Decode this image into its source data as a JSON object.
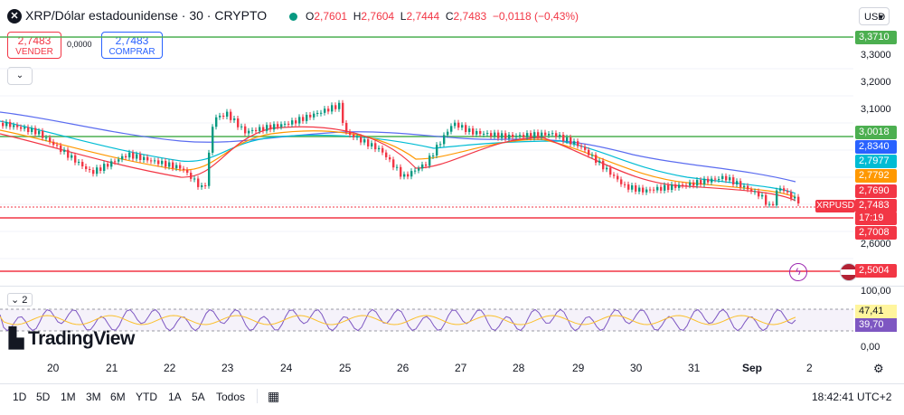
{
  "header": {
    "logo_glyph": "✕",
    "symbol_title": "XRP/Dólar estadounidense · 30 · CRYPTO",
    "ohlc": {
      "o_label": "O",
      "o_value": "2,7601",
      "h_label": "H",
      "h_value": "2,7604",
      "l_label": "L",
      "l_value": "2,7444",
      "c_label": "C",
      "c_value": "2,7483",
      "change": "−0,0118 (−0,43%)"
    },
    "currency": "USD"
  },
  "trade": {
    "sell_price": "2,7483",
    "sell_label": "VENDER",
    "spread": "0,0000",
    "buy_price": "2,7483",
    "buy_label": "COMPRAR"
  },
  "price_axis": {
    "plain_labels": [
      "3,3000",
      "3,2000",
      "3,1000",
      "2,6000"
    ],
    "tags": [
      {
        "value": "3,3710",
        "color": "#4caf50"
      },
      {
        "value": "3,0018",
        "color": "#4caf50"
      },
      {
        "value": "2,8340",
        "color": "#2962ff"
      },
      {
        "value": "2,7977",
        "color": "#00bcd4"
      },
      {
        "value": "2,7792",
        "color": "#ff9800"
      },
      {
        "value": "2,7690",
        "color": "#f23645"
      },
      {
        "value": "2,7483",
        "color": "#f23645"
      },
      {
        "value": "17:19",
        "color": "#f23645"
      },
      {
        "value": "2,7008",
        "color": "#f23645"
      },
      {
        "value": "2,5004",
        "color": "#f23645"
      }
    ],
    "symbol_tag": "XRPUSD"
  },
  "rsi_pane": {
    "indicator_count": "2",
    "axis_labels": [
      "100,00",
      "0,00"
    ],
    "upper_tag": "47,41",
    "lower_tag": "39,70"
  },
  "brand": "TradingView",
  "time_axis": [
    "20",
    "21",
    "22",
    "23",
    "24",
    "25",
    "26",
    "27",
    "28",
    "29",
    "30",
    "31",
    "Sep",
    "2"
  ],
  "bottom": {
    "ranges": [
      "1D",
      "5D",
      "1M",
      "3M",
      "6M",
      "YTD",
      "1A",
      "5A",
      "Todos"
    ],
    "clock": "18:42:41 UTC+2"
  },
  "icons": [
    "logo-icon",
    "live-dot-icon",
    "chevron-down-icon",
    "collapse-icon",
    "settings-icon",
    "calendar-range-icon",
    "event-flash-icon",
    "us-flag-icon"
  ]
}
